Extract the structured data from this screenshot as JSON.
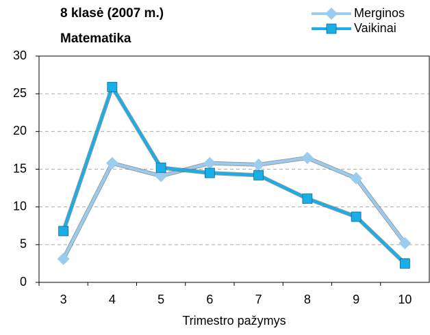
{
  "chart_data": {
    "type": "line",
    "title": "8 klasė (2007 m.)",
    "subtitle": "Matematika",
    "x_label": "Trimestro pažymys",
    "categories": [
      "3",
      "4",
      "5",
      "6",
      "7",
      "8",
      "9",
      "10"
    ],
    "series": [
      {
        "name": "Merginos",
        "color": "#99ccee",
        "marker": "diamond",
        "values": [
          3.1,
          15.8,
          14.1,
          15.8,
          15.6,
          16.5,
          13.8,
          5.2
        ]
      },
      {
        "name": "Vaikinai",
        "color": "#1aaee6",
        "marker": "square",
        "values": [
          6.8,
          25.9,
          15.2,
          14.5,
          14.2,
          11.1,
          8.7,
          2.5
        ]
      }
    ],
    "ylim": [
      0,
      30
    ],
    "yticks": [
      0,
      5,
      10,
      15,
      20,
      25,
      30
    ],
    "grid": true,
    "legend": "top-right"
  }
}
